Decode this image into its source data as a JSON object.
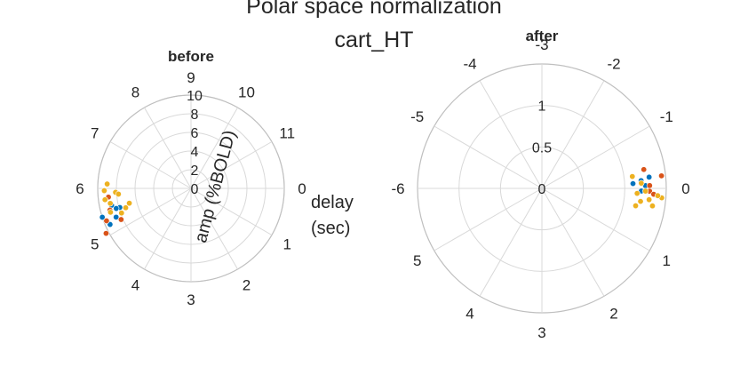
{
  "figure": {
    "title": "Polar space normalization",
    "subtitle": "cart_HT"
  },
  "colors": {
    "background": "#ffffff",
    "grid": "#d9d9d9",
    "outer_ring": "#bfbfbf",
    "text": "#262626",
    "series": [
      "#0072BD",
      "#D95319",
      "#EDB120"
    ]
  },
  "chart_data": [
    {
      "type": "scatter",
      "projection": "polar",
      "title": "before",
      "theta_label": "delay\n(sec)",
      "r_label": "amp (%BOLD)",
      "theta_tick_labels": [
        "0",
        "1",
        "2",
        "3",
        "4",
        "5",
        "6",
        "7",
        "8",
        "9",
        "10",
        "11"
      ],
      "r_ticks": [
        0,
        2,
        4,
        6,
        8,
        10
      ],
      "r_tick_labels": [
        "0",
        "2",
        "4",
        "6",
        "8",
        "10"
      ],
      "rlim": [
        0,
        10
      ],
      "grid": true,
      "series": [
        {
          "color_index": 0,
          "points": [
            {
              "theta": 5.4,
              "r": 10.0
            },
            {
              "theta": 5.5,
              "r": 7.9
            },
            {
              "theta": 5.6,
              "r": 8.7
            },
            {
              "theta": 5.3,
              "r": 8.6
            },
            {
              "theta": 5.2,
              "r": 9.5
            },
            {
              "theta": 5.5,
              "r": 8.3
            }
          ]
        },
        {
          "color_index": 1,
          "points": [
            {
              "theta": 5.07,
              "r": 10.3
            },
            {
              "theta": 5.8,
              "r": 8.9
            },
            {
              "theta": 5.2,
              "r": 8.2
            },
            {
              "theta": 5.5,
              "r": 9.0
            },
            {
              "theta": 5.3,
              "r": 9.7
            }
          ]
        },
        {
          "color_index": 2,
          "points": [
            {
              "theta": 5.95,
              "r": 9.3
            },
            {
              "theta": 6.1,
              "r": 9.0
            },
            {
              "theta": 5.75,
              "r": 9.3
            },
            {
              "theta": 5.65,
              "r": 8.8
            },
            {
              "theta": 5.9,
              "r": 8.1
            },
            {
              "theta": 5.85,
              "r": 7.8
            },
            {
              "theta": 5.55,
              "r": 6.8
            },
            {
              "theta": 5.45,
              "r": 7.3
            },
            {
              "theta": 5.35,
              "r": 7.9
            },
            {
              "theta": 5.45,
              "r": 9.0
            }
          ]
        }
      ]
    },
    {
      "type": "scatter",
      "projection": "polar",
      "title": "after",
      "theta_tick_labels": [
        "0",
        "1",
        "2",
        "3",
        "4",
        "5",
        "-6",
        "-5",
        "-4",
        "-3",
        "-2",
        "-1"
      ],
      "r_ticks": [
        0,
        0.5,
        1
      ],
      "r_tick_labels": [
        "0",
        "0.5",
        "1"
      ],
      "rlim": [
        0,
        1.5
      ],
      "grid": true,
      "series": [
        {
          "color_index": 0,
          "points": [
            {
              "theta": -0.15,
              "r": 1.2
            },
            {
              "theta": -0.1,
              "r": 1.1
            },
            {
              "theta": -0.05,
              "r": 1.25
            },
            {
              "theta": 0.05,
              "r": 1.2
            },
            {
              "theta": -0.2,
              "r": 1.3
            }
          ]
        },
        {
          "color_index": 1,
          "points": [
            {
              "theta": -0.35,
              "r": 1.25
            },
            {
              "theta": -0.2,
              "r": 1.45
            },
            {
              "theta": 0.05,
              "r": 1.3
            },
            {
              "theta": 0.1,
              "r": 1.35
            },
            {
              "theta": -0.05,
              "r": 1.3
            }
          ]
        },
        {
          "color_index": 2,
          "points": [
            {
              "theta": 0.2,
              "r": 1.3
            },
            {
              "theta": 0.3,
              "r": 1.35
            },
            {
              "theta": 0.25,
              "r": 1.2
            },
            {
              "theta": 0.1,
              "r": 1.15
            },
            {
              "theta": -0.1,
              "r": 1.2
            },
            {
              "theta": 0.15,
              "r": 1.45
            },
            {
              "theta": 0.12,
              "r": 1.4
            },
            {
              "theta": -0.25,
              "r": 1.1
            },
            {
              "theta": 0.35,
              "r": 1.15
            },
            {
              "theta": 0.05,
              "r": 1.25
            }
          ]
        }
      ]
    }
  ]
}
